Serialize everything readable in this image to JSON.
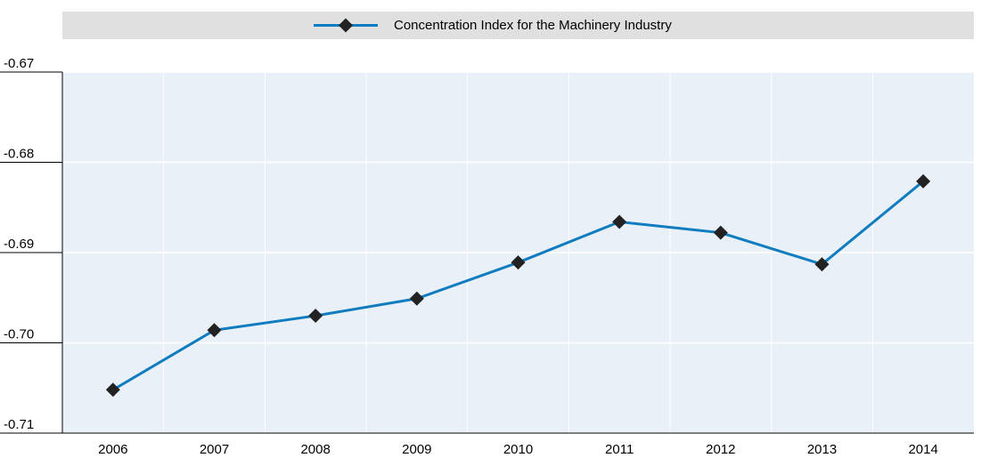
{
  "chart_data": {
    "type": "line",
    "categories": [
      "2006",
      "2007",
      "2008",
      "2009",
      "2010",
      "2011",
      "2012",
      "2013",
      "2014"
    ],
    "series": [
      {
        "name": "Concentration Index for the Machinery Industry",
        "color": "#0f7cbf",
        "values": [
          -0.7052,
          -0.6986,
          -0.697,
          -0.6951,
          -0.6911,
          -0.6866,
          -0.6878,
          -0.6913,
          -0.6821
        ]
      }
    ],
    "ylim": [
      -0.71,
      -0.67
    ],
    "yticks": [
      -0.71,
      -0.69,
      -0.68,
      -0.67,
      {
        "value": -0.7,
        "label": "-0.70"
      }
    ],
    "grid": true,
    "legend": "top"
  }
}
